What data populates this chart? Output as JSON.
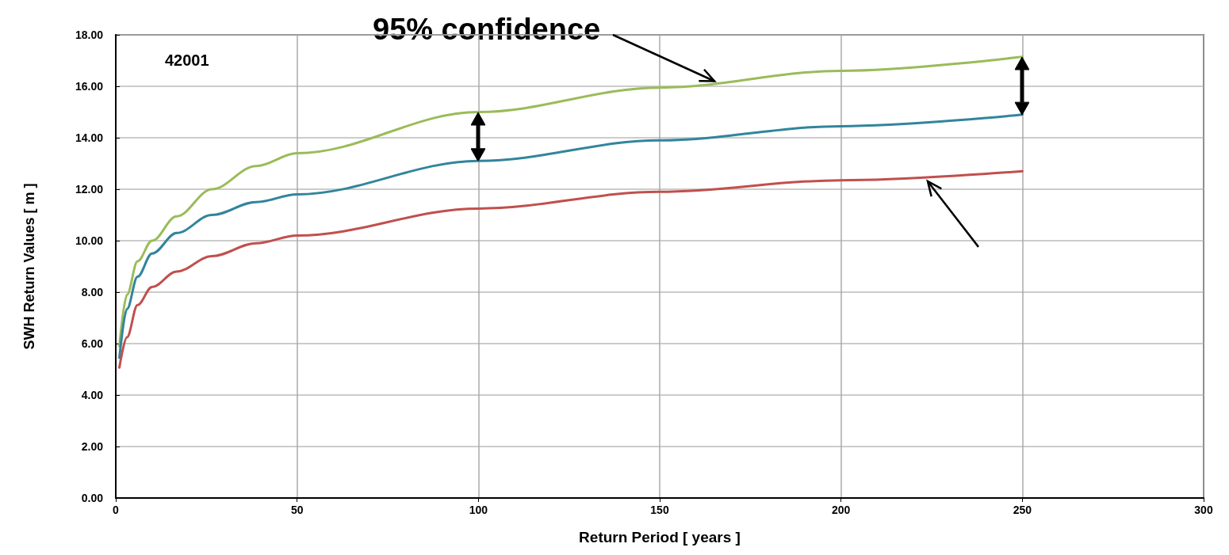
{
  "chart_data": {
    "type": "line",
    "xlabel": "Return Period [ years ]",
    "ylabel": "SWH Return Values [ m ]",
    "annotations": [
      "42001",
      {
        "text": "95% confidence",
        "x": 165,
        "y": 16.2
      }
    ],
    "x": [
      1,
      3.1,
      6,
      10,
      16.8,
      26.5,
      38.7,
      50,
      100,
      150,
      200,
      250
    ],
    "series": [
      {
        "color": "#9bbb59",
        "values": [
          5.9,
          7.9,
          9.2,
          10.0,
          10.95,
          12.0,
          12.9,
          13.4,
          15.0,
          15.95,
          16.6,
          17.15
        ]
      },
      {
        "color": "#31859c",
        "values": [
          5.45,
          7.35,
          8.6,
          9.5,
          10.3,
          11.0,
          11.5,
          11.8,
          13.1,
          13.9,
          14.45,
          14.9
        ]
      },
      {
        "color": "#c0504d",
        "values": [
          5.07,
          6.25,
          7.5,
          8.2,
          8.8,
          9.4,
          9.9,
          10.2,
          11.25,
          11.9,
          12.35,
          12.7
        ]
      }
    ],
    "xlim": [
      0,
      300
    ],
    "xticks": [
      0,
      50,
      100,
      150,
      200,
      250,
      300
    ],
    "ylim": [
      0,
      18
    ],
    "yticks": [
      {
        "value": 0,
        "label": "0.00"
      },
      {
        "value": 2,
        "label": "2.00"
      },
      {
        "value": 4,
        "label": "4.00"
      },
      {
        "value": 6,
        "label": "6.00"
      },
      {
        "value": 8,
        "label": "8.00"
      },
      {
        "value": 10,
        "label": "10.00"
      },
      {
        "value": 12,
        "label": "12.00"
      },
      {
        "value": 14,
        "label": "14.00"
      },
      {
        "value": 16,
        "label": "16.00"
      },
      {
        "value": 18,
        "label": "18.00"
      }
    ],
    "grid": true,
    "marker": "none",
    "line_style": "solid"
  }
}
